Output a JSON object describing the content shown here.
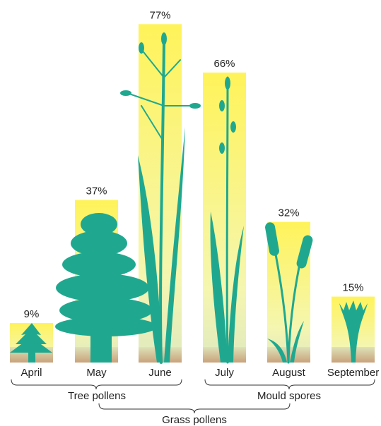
{
  "chart_data": {
    "type": "bar",
    "categories": [
      "April",
      "May",
      "June",
      "July",
      "August",
      "September"
    ],
    "values": [
      9,
      37,
      77,
      66,
      32,
      15
    ],
    "value_labels": [
      "9%",
      "37%",
      "77%",
      "66%",
      "32%",
      "15%"
    ],
    "groups": [
      "Tree pollens",
      "Mould spores",
      "Grass pollens"
    ]
  }
}
